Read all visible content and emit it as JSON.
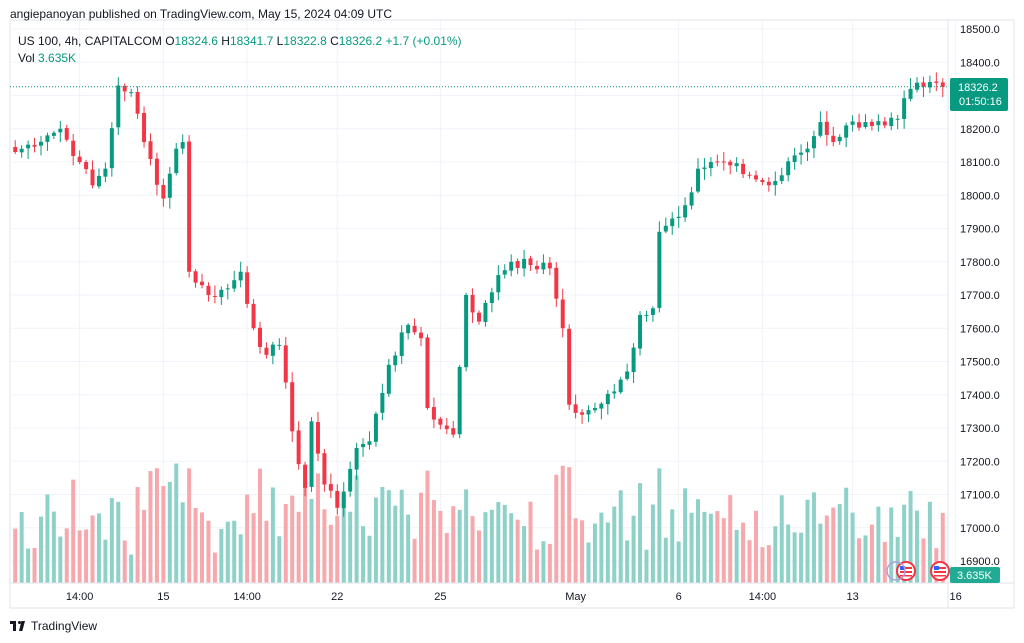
{
  "header": {
    "published": "angiepanoyan published on TradingView.com, May 15, 2024 04:09 UTC"
  },
  "legend": {
    "symbol": "US 100, 4h, CAPITALCOM",
    "open_label": "O",
    "open": "18324.6",
    "high_label": "H",
    "high": "18341.7",
    "low_label": "L",
    "low": "18322.8",
    "close_label": "C",
    "close": "18326.2",
    "change": "+1.7 (+0.01%)",
    "vol_label": "Vol",
    "vol_value": "3.635K"
  },
  "price_badge": {
    "price": "18326.2",
    "countdown": "01:50:16"
  },
  "volume_badge": "3.635K",
  "footer": {
    "brand": "TradingView"
  },
  "colors": {
    "up": "#089981",
    "down": "#F23645",
    "vol_up": "#8ED1C8",
    "vol_down": "#F6A8AD",
    "grid": "#F0F3FA"
  },
  "chart_data": {
    "type": "candlestick",
    "symbol": "US 100",
    "timeframe": "4h",
    "y_axis": {
      "min": 16850,
      "max": 18550,
      "ticks": [
        "18500.0",
        "18400.0",
        "18300.0",
        "18200.0",
        "18100.0",
        "18000.0",
        "17900.0",
        "17800.0",
        "17700.0",
        "17600.0",
        "17500.0",
        "17400.0",
        "17300.0",
        "17200.0",
        "17100.0",
        "17000.0",
        "16900.0"
      ]
    },
    "x_axis": {
      "n_bars": 145,
      "ticks": [
        {
          "label": "14:00",
          "bar": 10
        },
        {
          "label": "15",
          "bar": 23
        },
        {
          "label": "14:00",
          "bar": 36
        },
        {
          "label": "22",
          "bar": 50
        },
        {
          "label": "25",
          "bar": 66
        },
        {
          "label": "May",
          "bar": 87
        },
        {
          "label": "6",
          "bar": 103
        },
        {
          "label": "14:00",
          "bar": 116
        },
        {
          "label": "13",
          "bar": 130
        },
        {
          "label": "16",
          "bar": 146
        }
      ]
    },
    "last_price": 18326.2,
    "volume_max": 3.635,
    "anchors": [
      [
        0,
        18130
      ],
      [
        5,
        18180
      ],
      [
        7,
        18200
      ],
      [
        10,
        18100
      ],
      [
        12,
        18030
      ],
      [
        14,
        18080
      ],
      [
        16,
        18330
      ],
      [
        18,
        18310
      ],
      [
        20,
        18160
      ],
      [
        23,
        17990
      ],
      [
        25,
        18140
      ],
      [
        26,
        18160
      ],
      [
        27,
        17770
      ],
      [
        30,
        17700
      ],
      [
        33,
        17720
      ],
      [
        35,
        17770
      ],
      [
        37,
        17600
      ],
      [
        39,
        17520
      ],
      [
        41,
        17550
      ],
      [
        43,
        17290
      ],
      [
        45,
        17120
      ],
      [
        46,
        17320
      ],
      [
        48,
        17130
      ],
      [
        50,
        17060
      ],
      [
        53,
        17240
      ],
      [
        55,
        17260
      ],
      [
        58,
        17490
      ],
      [
        61,
        17610
      ],
      [
        63,
        17570
      ],
      [
        64,
        17360
      ],
      [
        66,
        17310
      ],
      [
        68,
        17280
      ],
      [
        70,
        17700
      ],
      [
        72,
        17620
      ],
      [
        75,
        17760
      ],
      [
        77,
        17800
      ],
      [
        80,
        17790
      ],
      [
        83,
        17780
      ],
      [
        85,
        17600
      ],
      [
        86,
        17370
      ],
      [
        88,
        17340
      ],
      [
        90,
        17360
      ],
      [
        93,
        17410
      ],
      [
        95,
        17470
      ],
      [
        97,
        17640
      ],
      [
        99,
        17660
      ],
      [
        100,
        17890
      ],
      [
        102,
        17930
      ],
      [
        104,
        17970
      ],
      [
        106,
        18080
      ],
      [
        109,
        18100
      ],
      [
        111,
        18090
      ],
      [
        114,
        18060
      ],
      [
        117,
        18030
      ],
      [
        119,
        18060
      ],
      [
        121,
        18120
      ],
      [
        123,
        18140
      ],
      [
        125,
        18220
      ],
      [
        127,
        18160
      ],
      [
        129,
        18210
      ],
      [
        132,
        18220
      ],
      [
        135,
        18210
      ],
      [
        137,
        18230
      ],
      [
        139,
        18320
      ],
      [
        141,
        18326.2
      ]
    ]
  }
}
